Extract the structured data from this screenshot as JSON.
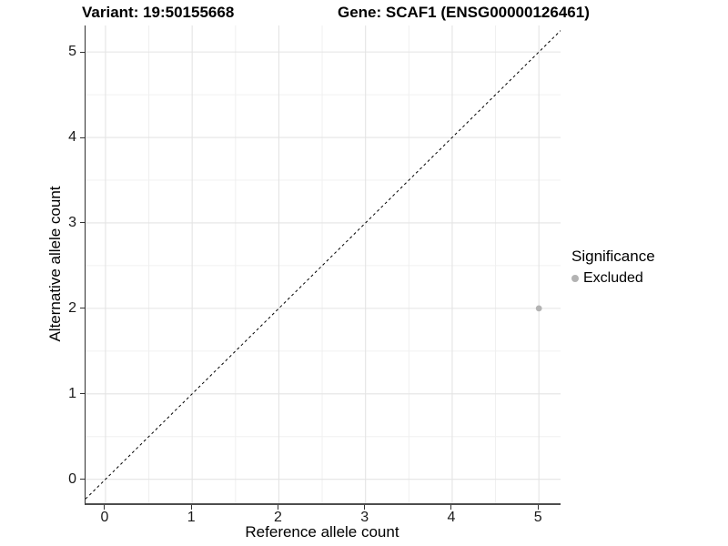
{
  "titles": {
    "variant": "Variant: 19:50155668",
    "gene": "Gene: SCAF1 (ENSG00000126461)"
  },
  "axes": {
    "x_label": "Reference allele count",
    "y_label": "Alternative allele count"
  },
  "legend": {
    "title": "Significance",
    "items": [
      {
        "label": "Excluded",
        "color": "#b3b3b3"
      }
    ]
  },
  "colors": {
    "point": "#b3b3b3",
    "grid_major": "#e4e4e4",
    "grid_minor": "#f0f0f0",
    "axis_line": "#333333",
    "reference_line": "#000000"
  },
  "chart_data": {
    "type": "scatter",
    "title": "Variant: 19:50155668 — Gene: SCAF1 (ENSG00000126461)",
    "xlabel": "Reference allele count",
    "ylabel": "Alternative allele count",
    "x_ticks": [
      0,
      1,
      2,
      3,
      4,
      5
    ],
    "y_ticks": [
      0,
      1,
      2,
      3,
      4,
      5
    ],
    "xlim": [
      -0.23,
      5.25
    ],
    "ylim": [
      -0.28,
      5.31
    ],
    "grid": "major and minor gridlines on white background",
    "legend_position": "right",
    "series": [
      {
        "name": "Excluded",
        "color": "#b3b3b3",
        "points": [
          {
            "x": 5,
            "y": 2
          }
        ]
      }
    ],
    "reference_line": {
      "kind": "identity y=x",
      "style": "dashed",
      "color": "#000000"
    }
  }
}
